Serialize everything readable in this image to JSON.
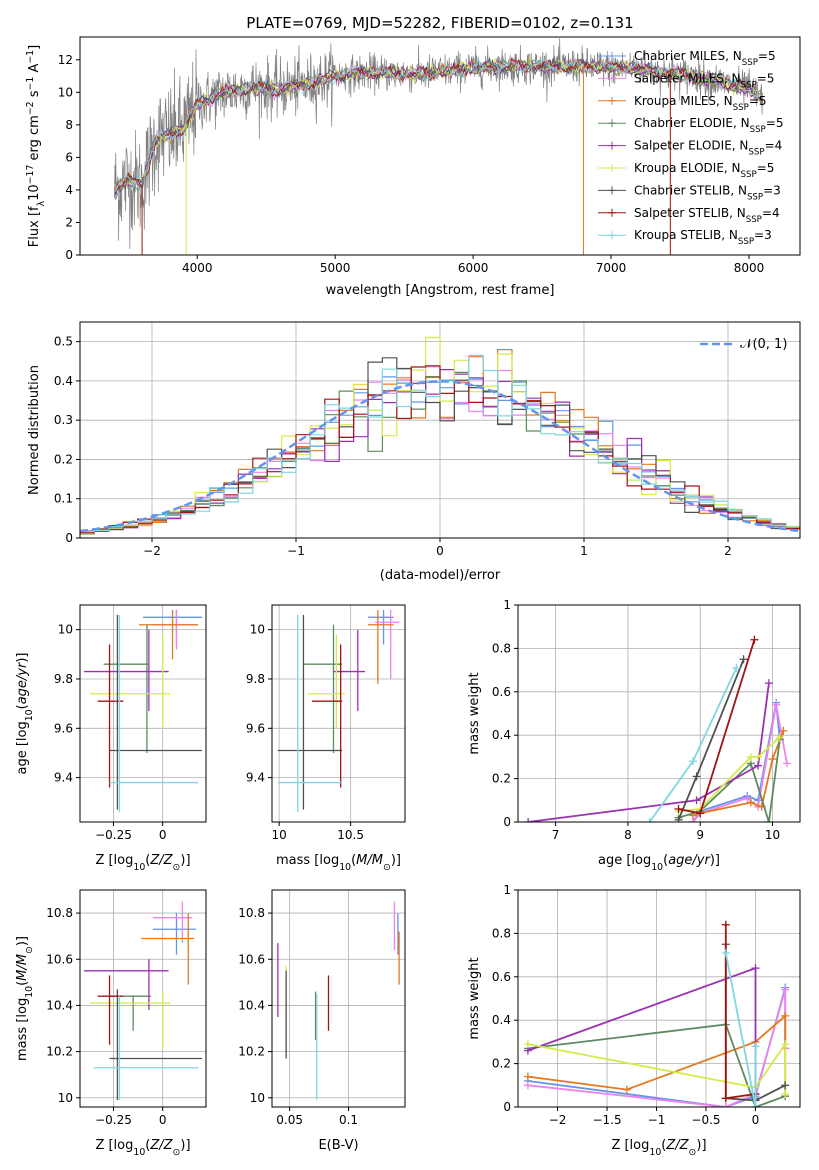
{
  "figure": {
    "title": "PLATE=0769, MJD=52282, FIBERID=0102, z=0.131"
  },
  "colors": {
    "chabrier_miles": "#6495ED",
    "salpeter_miles": "#EE82EE",
    "kroupa_miles": "#E6781E",
    "chabrier_elodie": "#5F8A5F",
    "salpeter_elodie": "#9B30B4",
    "kroupa_elodie": "#D4EA4C",
    "chabrier_stelib": "#505050",
    "salpeter_stelib": "#A01414",
    "kroupa_stelib": "#7ED6E0",
    "data": "#808080",
    "normal": "#6495ED",
    "grid": "#b0b0b0"
  },
  "chart_data": [
    {
      "id": "spectrum",
      "type": "line",
      "xlabel": "wavelength [Angstrom, rest frame]",
      "ylabel": "Flux [f_λ10^-17 erg cm^-2 s^-1 A^-1]",
      "xlim": [
        3150,
        8370
      ],
      "ylim": [
        0,
        13.4
      ],
      "xticks": [
        4000,
        5000,
        6000,
        7000,
        8000
      ],
      "yticks": [
        0,
        2,
        4,
        6,
        8,
        10,
        12
      ],
      "grid": false,
      "legend_position": "upper-right",
      "legend": [
        {
          "label": "Chabrier MILES, N_SSP=5",
          "color": "#6495ED",
          "marker": "+"
        },
        {
          "label": "Salpeter MILES, N_SSP=5",
          "color": "#EE82EE",
          "marker": "+"
        },
        {
          "label": "Kroupa MILES, N_SSP=5",
          "color": "#E6781E",
          "marker": "+"
        },
        {
          "label": "Chabrier ELODIE, N_SSP=5",
          "color": "#5F8A5F",
          "marker": "+"
        },
        {
          "label": "Salpeter ELODIE, N_SSP=4",
          "color": "#9B30B4",
          "marker": "+"
        },
        {
          "label": "Kroupa ELODIE, N_SSP=5",
          "color": "#D4EA4C",
          "marker": "+"
        },
        {
          "label": "Chabrier STELIB, N_SSP=3",
          "color": "#505050",
          "marker": "+"
        },
        {
          "label": "Salpeter STELIB, N_SSP=4",
          "color": "#A01414",
          "marker": "+"
        },
        {
          "label": "Kroupa STELIB, N_SSP=3",
          "color": "#7ED6E0",
          "marker": "+"
        }
      ],
      "continuum": {
        "x": [
          3400,
          3500,
          3600,
          3700,
          3800,
          3900,
          4000,
          4200,
          4400,
          4600,
          4800,
          5000,
          5200,
          5400,
          5600,
          5800,
          6000,
          6200,
          6400,
          6600,
          6800,
          7000,
          7200,
          7400,
          7600,
          7800,
          8000,
          8100
        ],
        "y": [
          4.0,
          4.6,
          4.3,
          7.1,
          7.4,
          7.7,
          9.3,
          10.0,
          10.3,
          10.2,
          10.5,
          11.0,
          11.2,
          11.2,
          11.1,
          11.3,
          11.5,
          11.6,
          11.6,
          11.6,
          11.6,
          11.5,
          11.5,
          11.2,
          11.0,
          10.6,
          10.2,
          9.6
        ]
      }
    },
    {
      "id": "residuals",
      "type": "histogram",
      "xlabel": "(data-model)/error",
      "ylabel": "Normed distribution",
      "xlim": [
        -2.5,
        2.5
      ],
      "ylim": [
        0,
        0.55
      ],
      "xticks": [
        -2,
        -1,
        0,
        1,
        2
      ],
      "yticks": [
        0.0,
        0.1,
        0.2,
        0.3,
        0.4,
        0.5
      ],
      "grid": true,
      "legend_position": "upper-right",
      "legend_label": "𝒩(0, 1)",
      "normal_curve": {
        "mean": 0,
        "sigma": 1
      }
    },
    {
      "id": "z-vs-age",
      "type": "scatter-errorbar",
      "xlabel": "Z [log10(Z/Z⊙)]",
      "ylabel": "age  [log10(age/yr)]",
      "xlim": [
        -0.42,
        0.22
      ],
      "ylim": [
        9.22,
        10.1
      ],
      "xticks": [
        -0.25,
        0.0
      ],
      "yticks": [
        9.4,
        9.6,
        9.8,
        10.0
      ],
      "grid": true,
      "points": [
        {
          "model": "chabrier_miles",
          "x": 0.07,
          "y": 10.05,
          "x_lo": -0.1,
          "x_hi": 0.2,
          "y_lo": 9.94,
          "y_hi": 10.08
        },
        {
          "model": "salpeter_miles",
          "x": 0.07,
          "y": 10.02,
          "x_lo": -0.05,
          "x_hi": 0.18,
          "y_lo": 9.92,
          "y_hi": 10.08
        },
        {
          "model": "kroupa_miles",
          "x": 0.05,
          "y": 10.02,
          "x_lo": -0.12,
          "x_hi": 0.18,
          "y_lo": 9.88,
          "y_hi": 10.08
        },
        {
          "model": "chabrier_elodie",
          "x": -0.08,
          "y": 9.86,
          "x_lo": -0.3,
          "x_hi": -0.07,
          "y_lo": 9.5,
          "y_hi": 10.02
        },
        {
          "model": "salpeter_elodie",
          "x": -0.07,
          "y": 9.83,
          "x_lo": -0.4,
          "x_hi": 0.03,
          "y_lo": 9.67,
          "y_hi": 10.0
        },
        {
          "model": "kroupa_elodie",
          "x": 0.0,
          "y": 9.74,
          "x_lo": -0.37,
          "x_hi": 0.04,
          "y_lo": 9.6,
          "y_hi": 9.98
        },
        {
          "model": "chabrier_stelib",
          "x": -0.23,
          "y": 9.51,
          "x_lo": -0.27,
          "x_hi": 0.2,
          "y_lo": 9.27,
          "y_hi": 10.06
        },
        {
          "model": "salpeter_stelib",
          "x": -0.27,
          "y": 9.71,
          "x_lo": -0.33,
          "x_hi": -0.2,
          "y_lo": 9.36,
          "y_hi": 9.94
        },
        {
          "model": "kroupa_stelib",
          "x": -0.22,
          "y": 9.38,
          "x_lo": -0.27,
          "x_hi": 0.18,
          "y_lo": 9.26,
          "y_hi": 10.06
        }
      ]
    },
    {
      "id": "mass-vs-age",
      "type": "scatter-errorbar",
      "xlabel": "mass [log10(M/M⊙)]",
      "ylabel": "",
      "xlim": [
        9.95,
        10.88
      ],
      "ylim": [
        9.22,
        10.1
      ],
      "xticks": [
        10.0,
        10.5
      ],
      "yticks": [
        9.4,
        9.6,
        9.8,
        10.0
      ],
      "grid": true,
      "points": [
        {
          "model": "chabrier_miles",
          "x": 10.73,
          "y": 10.05,
          "x_lo": 10.62,
          "x_hi": 10.8,
          "y_lo": 9.94,
          "y_hi": 10.08
        },
        {
          "model": "salpeter_miles",
          "x": 10.78,
          "y": 10.03,
          "x_lo": 10.67,
          "x_hi": 10.84,
          "y_lo": 9.8,
          "y_hi": 10.08
        },
        {
          "model": "kroupa_miles",
          "x": 10.69,
          "y": 10.02,
          "x_lo": 10.62,
          "x_hi": 10.8,
          "y_lo": 9.78,
          "y_hi": 10.08
        },
        {
          "model": "chabrier_elodie",
          "x": 10.38,
          "y": 9.86,
          "x_lo": 10.17,
          "x_hi": 10.44,
          "y_lo": 9.5,
          "y_hi": 10.02
        },
        {
          "model": "salpeter_elodie",
          "x": 10.55,
          "y": 9.83,
          "x_lo": 10.38,
          "x_hi": 10.6,
          "y_lo": 9.67,
          "y_hi": 10.0
        },
        {
          "model": "kroupa_elodie",
          "x": 10.4,
          "y": 9.74,
          "x_lo": 10.2,
          "x_hi": 10.46,
          "y_lo": 9.6,
          "y_hi": 9.98
        },
        {
          "model": "chabrier_stelib",
          "x": 10.17,
          "y": 9.51,
          "x_lo": 9.99,
          "x_hi": 10.44,
          "y_lo": 9.27,
          "y_hi": 10.06
        },
        {
          "model": "salpeter_stelib",
          "x": 10.43,
          "y": 9.71,
          "x_lo": 10.23,
          "x_hi": 10.44,
          "y_lo": 9.36,
          "y_hi": 9.94
        },
        {
          "model": "kroupa_stelib",
          "x": 10.13,
          "y": 9.38,
          "x_lo": 9.99,
          "x_hi": 10.44,
          "y_lo": 9.26,
          "y_hi": 10.06
        }
      ]
    },
    {
      "id": "age-vs-weight",
      "type": "line",
      "xlabel": "age  [log10(age/yr)]",
      "ylabel": "mass weight",
      "xlim": [
        6.48,
        10.38
      ],
      "ylim": [
        0,
        1.0
      ],
      "xticks": [
        7,
        8,
        9,
        10
      ],
      "yticks": [
        0.0,
        0.2,
        0.4,
        0.6,
        0.8,
        1.0
      ],
      "grid": true,
      "series": [
        {
          "model": "chabrier_miles",
          "x": [
            8.9,
            9.0,
            9.65,
            9.8,
            10.05,
            10.1
          ],
          "y": [
            0.0,
            0.05,
            0.12,
            0.1,
            0.55,
            0.38
          ]
        },
        {
          "model": "salpeter_miles",
          "x": [
            8.9,
            9.0,
            9.65,
            9.8,
            10.05,
            10.2
          ],
          "y": [
            0.0,
            0.04,
            0.11,
            0.07,
            0.54,
            0.27
          ]
        },
        {
          "model": "kroupa_miles",
          "x": [
            8.9,
            9.0,
            9.7,
            9.85,
            10.0,
            10.15
          ],
          "y": [
            0.03,
            0.04,
            0.09,
            0.07,
            0.29,
            0.42
          ]
        },
        {
          "model": "chabrier_elodie",
          "x": [
            8.7,
            9.0,
            9.7,
            9.95,
            10.1
          ],
          "y": [
            0.02,
            0.05,
            0.27,
            0.0,
            0.38
          ]
        },
        {
          "model": "salpeter_elodie",
          "x": [
            6.62,
            8.95,
            9.8,
            9.95
          ],
          "y": [
            0.0,
            0.1,
            0.26,
            0.64
          ]
        },
        {
          "model": "kroupa_elodie",
          "x": [
            8.7,
            9.0,
            9.7,
            9.8,
            10.1
          ],
          "y": [
            0.05,
            0.06,
            0.3,
            0.3,
            0.39
          ]
        },
        {
          "model": "chabrier_stelib",
          "x": [
            8.7,
            8.95,
            9.6
          ],
          "y": [
            0.01,
            0.21,
            0.75
          ]
        },
        {
          "model": "salpeter_stelib",
          "x": [
            8.7,
            9.0,
            9.75
          ],
          "y": [
            0.06,
            0.04,
            0.84
          ]
        },
        {
          "model": "kroupa_stelib",
          "x": [
            8.3,
            8.9,
            9.5
          ],
          "y": [
            0.0,
            0.28,
            0.71
          ]
        }
      ]
    },
    {
      "id": "z-vs-mass",
      "type": "scatter-errorbar",
      "xlabel": "Z [log10(Z/Z⊙)]",
      "ylabel": "mass [log10(M/M⊙)]",
      "xlim": [
        -0.42,
        0.22
      ],
      "ylim": [
        9.96,
        10.9
      ],
      "xticks": [
        -0.25,
        0.0
      ],
      "yticks": [
        10.0,
        10.2,
        10.4,
        10.6,
        10.8
      ],
      "grid": true,
      "points": [
        {
          "model": "chabrier_miles",
          "x": 0.07,
          "y": 10.73,
          "x_lo": -0.05,
          "x_hi": 0.17,
          "y_lo": 10.62,
          "y_hi": 10.8
        },
        {
          "model": "salpeter_miles",
          "x": 0.1,
          "y": 10.78,
          "x_lo": -0.05,
          "x_hi": 0.15,
          "y_lo": 10.67,
          "y_hi": 10.85
        },
        {
          "model": "kroupa_miles",
          "x": 0.13,
          "y": 10.69,
          "x_lo": -0.11,
          "x_hi": 0.16,
          "y_lo": 10.49,
          "y_hi": 10.8
        },
        {
          "model": "chabrier_elodie",
          "x": -0.15,
          "y": 10.44,
          "x_lo": -0.27,
          "x_hi": -0.06,
          "y_lo": 10.29,
          "y_hi": 10.44
        },
        {
          "model": "salpeter_elodie",
          "x": -0.07,
          "y": 10.55,
          "x_lo": -0.4,
          "x_hi": 0.03,
          "y_lo": 10.38,
          "y_hi": 10.6
        },
        {
          "model": "kroupa_elodie",
          "x": 0.0,
          "y": 10.41,
          "x_lo": -0.37,
          "x_hi": 0.04,
          "y_lo": 10.21,
          "y_hi": 10.46
        },
        {
          "model": "chabrier_stelib",
          "x": -0.23,
          "y": 10.17,
          "x_lo": -0.27,
          "x_hi": 0.2,
          "y_lo": 9.99,
          "y_hi": 10.47
        },
        {
          "model": "salpeter_stelib",
          "x": -0.27,
          "y": 10.44,
          "x_lo": -0.33,
          "x_hi": -0.2,
          "y_lo": 10.23,
          "y_hi": 10.53
        },
        {
          "model": "kroupa_stelib",
          "x": -0.22,
          "y": 10.13,
          "x_lo": -0.35,
          "x_hi": 0.18,
          "y_lo": 9.99,
          "y_hi": 10.44
        }
      ]
    },
    {
      "id": "ebv-vs-mass",
      "type": "errorbar",
      "xlabel": "E(B-V)",
      "ylabel": "",
      "xlim": [
        0.035,
        0.148
      ],
      "ylim": [
        9.96,
        10.9
      ],
      "xticks": [
        0.05,
        0.1
      ],
      "yticks": [
        10.0,
        10.2,
        10.4,
        10.6,
        10.8
      ],
      "grid": true,
      "points": [
        {
          "model": "chabrier_miles",
          "x": 0.142,
          "y": 10.7,
          "y_lo": 10.62,
          "y_hi": 10.8
        },
        {
          "model": "salpeter_miles",
          "x": 0.139,
          "y": 10.75,
          "y_lo": 10.64,
          "y_hi": 10.85
        },
        {
          "model": "kroupa_miles",
          "x": 0.143,
          "y": 10.6,
          "y_lo": 10.49,
          "y_hi": 10.72
        },
        {
          "model": "chabrier_elodie",
          "x": 0.072,
          "y": 10.35,
          "y_lo": 10.25,
          "y_hi": 10.46
        },
        {
          "model": "salpeter_elodie",
          "x": 0.04,
          "y": 10.5,
          "y_lo": 10.35,
          "y_hi": 10.67
        },
        {
          "model": "kroupa_elodie",
          "x": 0.047,
          "y": 10.4,
          "y_lo": 10.2,
          "y_hi": 10.57
        },
        {
          "model": "chabrier_stelib",
          "x": 0.047,
          "y": 10.3,
          "y_lo": 10.17,
          "y_hi": 10.55
        },
        {
          "model": "salpeter_stelib",
          "x": 0.083,
          "y": 10.4,
          "y_lo": 10.29,
          "y_hi": 10.53
        },
        {
          "model": "kroupa_stelib",
          "x": 0.073,
          "y": 10.2,
          "y_lo": 9.99,
          "y_hi": 10.45
        }
      ]
    },
    {
      "id": "zsol-vs-weight",
      "type": "line",
      "xlabel": "Z [log10(Z/Z⊙)]",
      "ylabel": "mass weight",
      "xlim": [
        -2.4,
        0.45
      ],
      "ylim": [
        0,
        1.0
      ],
      "xticks": [
        -2.0,
        -1.5,
        -1.0,
        -0.5,
        0.0
      ],
      "yticks": [
        0.0,
        0.2,
        0.4,
        0.6,
        0.8,
        1.0
      ],
      "grid": true,
      "series": [
        {
          "model": "chabrier_miles",
          "x": [
            -2.3,
            -0.3,
            0.0,
            0.3,
            0.3
          ],
          "y": [
            0.12,
            0.0,
            0.05,
            0.55,
            0.27
          ]
        },
        {
          "model": "salpeter_miles",
          "x": [
            -2.3,
            -0.3,
            0.0,
            0.3,
            0.3
          ],
          "y": [
            0.1,
            0.0,
            0.06,
            0.54,
            0.27
          ]
        },
        {
          "model": "kroupa_miles",
          "x": [
            -2.3,
            -1.3,
            0.0,
            0.3,
            0.3
          ],
          "y": [
            0.14,
            0.08,
            0.3,
            0.42,
            0.05
          ]
        },
        {
          "model": "chabrier_elodie",
          "x": [
            -2.3,
            -0.3,
            0.0,
            0.3
          ],
          "y": [
            0.27,
            0.38,
            0.0,
            0.05
          ]
        },
        {
          "model": "salpeter_elodie",
          "x": [
            -2.3,
            0.0,
            0.0
          ],
          "y": [
            0.26,
            0.64,
            0.04
          ]
        },
        {
          "model": "kroupa_elodie",
          "x": [
            -2.3,
            0.0,
            0.3,
            0.3
          ],
          "y": [
            0.29,
            0.09,
            0.29,
            0.06
          ]
        },
        {
          "model": "chabrier_stelib",
          "x": [
            -0.3,
            -0.3,
            0.0,
            0.3
          ],
          "y": [
            0.75,
            0.04,
            0.03,
            0.1
          ]
        },
        {
          "model": "salpeter_stelib",
          "x": [
            -0.3,
            -0.3,
            0.0
          ],
          "y": [
            0.84,
            0.04,
            0.06
          ]
        },
        {
          "model": "kroupa_stelib",
          "x": [
            -0.3,
            0.0,
            0.0
          ],
          "y": [
            0.71,
            0.0,
            0.28
          ]
        }
      ]
    }
  ]
}
